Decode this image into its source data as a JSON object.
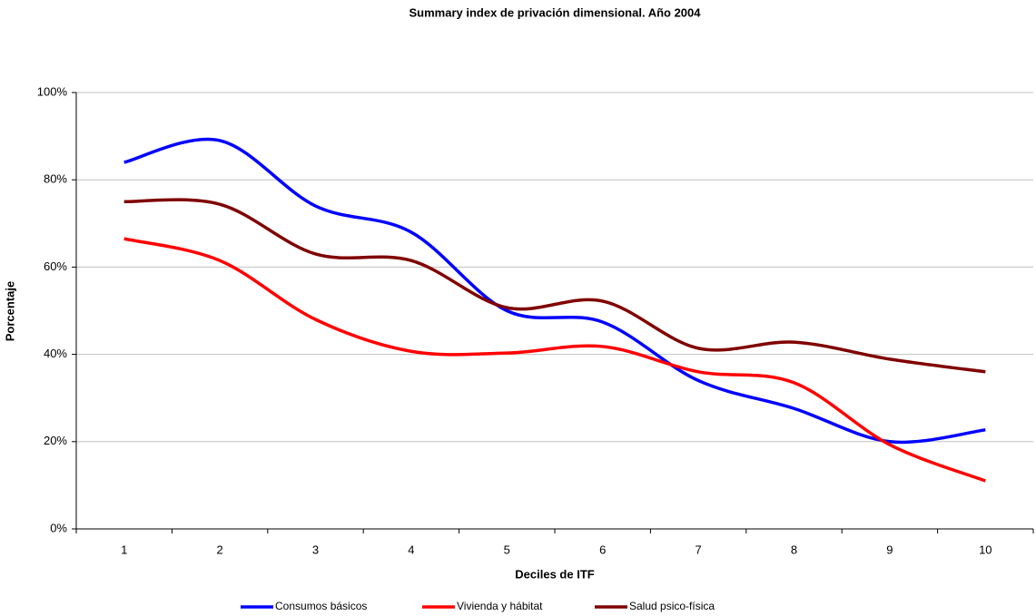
{
  "chart_data": {
    "type": "line",
    "title": "Summary index de privación dimensional. Año 2004",
    "x_label": "Deciles de ITF",
    "y_label": "Porcentaje",
    "categories": [
      "1",
      "2",
      "3",
      "4",
      "5",
      "6",
      "7",
      "8",
      "9",
      "10"
    ],
    "series": [
      {
        "name": "Consumos básicos",
        "color": "#0000ff",
        "values": [
          84,
          89,
          74,
          68,
          50,
          47.4,
          34,
          27.6,
          20,
          22.7
        ]
      },
      {
        "name": "Vivienda y hábitat",
        "color": "#ff0000",
        "values": [
          66.5,
          61.5,
          48,
          40.7,
          40.3,
          41.8,
          36,
          33.5,
          19.3,
          11
        ]
      },
      {
        "name": "Salud psico-física",
        "color": "#800000",
        "values": [
          75,
          74.4,
          63,
          61.5,
          50.7,
          52.2,
          41.4,
          42.8,
          38.9,
          36
        ]
      }
    ],
    "ylim": [
      0,
      100
    ],
    "yticks": [
      {
        "value": 0,
        "label": "0%"
      },
      {
        "value": 20,
        "label": "20%"
      },
      {
        "value": 40,
        "label": "40%"
      },
      {
        "value": 60,
        "label": "60%"
      },
      {
        "value": 80,
        "label": "80%"
      },
      {
        "value": 100,
        "label": "100%"
      }
    ],
    "grid": true,
    "legend": "bottom"
  }
}
